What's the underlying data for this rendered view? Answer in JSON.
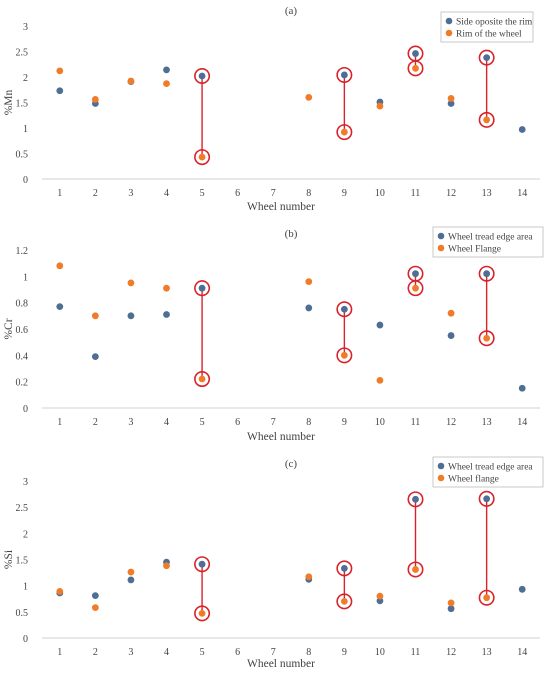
{
  "chart_data": [
    {
      "type": "scatter",
      "title": "(a)",
      "xlabel": "Wheel number",
      "ylabel": "%Mn",
      "xlim": [
        0.5,
        14.5
      ],
      "ylim": [
        0,
        3
      ],
      "yticks": [
        "0",
        "0.5",
        "1",
        "1.5",
        "2",
        "2.5",
        "3"
      ],
      "xticks": [
        "1",
        "2",
        "3",
        "4",
        "5",
        "6",
        "7",
        "8",
        "9",
        "10",
        "11",
        "12",
        "13",
        "14"
      ],
      "legend_position": "top-right",
      "grid": false,
      "series": [
        {
          "name": "Side oposite the rim",
          "color": "#4e6e94",
          "points": [
            [
              1,
              1.73
            ],
            [
              2,
              1.48
            ],
            [
              3,
              1.91
            ],
            [
              4,
              2.14
            ],
            [
              5,
              2.02
            ],
            [
              9,
              2.04
            ],
            [
              10,
              1.51
            ],
            [
              11,
              2.46
            ],
            [
              12,
              1.48
            ],
            [
              13,
              2.38
            ],
            [
              14,
              0.97
            ]
          ]
        },
        {
          "name": "Rim of the wheel",
          "color": "#f07c2a",
          "points": [
            [
              1,
              2.12
            ],
            [
              2,
              1.56
            ],
            [
              3,
              1.92
            ],
            [
              4,
              1.87
            ],
            [
              5,
              0.43
            ],
            [
              8,
              1.6
            ],
            [
              9,
              0.92
            ],
            [
              10,
              1.43
            ],
            [
              11,
              2.17
            ],
            [
              12,
              1.58
            ],
            [
              13,
              1.16
            ]
          ]
        }
      ],
      "highlights": [
        {
          "x": 5,
          "y_top": 2.02,
          "y_bottom": 0.43
        },
        {
          "x": 9,
          "y_top": 2.04,
          "y_bottom": 0.92
        },
        {
          "x": 11,
          "y_top": 2.46,
          "y_bottom": 2.17
        },
        {
          "x": 13,
          "y_top": 2.38,
          "y_bottom": 1.16
        }
      ]
    },
    {
      "type": "scatter",
      "title": "(b)",
      "xlabel": "Wheel number",
      "ylabel": "%Cr",
      "xlim": [
        0.5,
        14.5
      ],
      "ylim": [
        0,
        1.2
      ],
      "yticks": [
        "0",
        "0.2",
        "0.4",
        "0.6",
        "0.8",
        "1",
        "1.2"
      ],
      "xticks": [
        "1",
        "2",
        "3",
        "4",
        "5",
        "6",
        "7",
        "8",
        "9",
        "10",
        "11",
        "12",
        "13",
        "14"
      ],
      "legend_position": "top-right",
      "grid": false,
      "series": [
        {
          "name": "Wheel tread edge area",
          "color": "#4e6e94",
          "points": [
            [
              1,
              0.77
            ],
            [
              2,
              0.39
            ],
            [
              3,
              0.7
            ],
            [
              4,
              0.71
            ],
            [
              5,
              0.91
            ],
            [
              8,
              0.76
            ],
            [
              9,
              0.75
            ],
            [
              10,
              0.63
            ],
            [
              11,
              1.02
            ],
            [
              12,
              0.55
            ],
            [
              13,
              1.02
            ],
            [
              14,
              0.15
            ]
          ]
        },
        {
          "name": "Wheel Flange",
          "color": "#f07c2a",
          "points": [
            [
              1,
              1.08
            ],
            [
              2,
              0.7
            ],
            [
              3,
              0.95
            ],
            [
              4,
              0.91
            ],
            [
              5,
              0.22
            ],
            [
              8,
              0.96
            ],
            [
              9,
              0.4
            ],
            [
              10,
              0.21
            ],
            [
              11,
              0.91
            ],
            [
              12,
              0.72
            ],
            [
              13,
              0.53
            ]
          ]
        }
      ],
      "highlights": [
        {
          "x": 5,
          "y_top": 0.91,
          "y_bottom": 0.22
        },
        {
          "x": 9,
          "y_top": 0.75,
          "y_bottom": 0.4
        },
        {
          "x": 11,
          "y_top": 1.02,
          "y_bottom": 0.91
        },
        {
          "x": 13,
          "y_top": 1.02,
          "y_bottom": 0.53
        }
      ]
    },
    {
      "type": "scatter",
      "title": "(c)",
      "xlabel": "Wheel number",
      "ylabel": "%Si",
      "xlim": [
        0.5,
        14.5
      ],
      "ylim": [
        0,
        3
      ],
      "yticks": [
        "0",
        "0.5",
        "1",
        "1.5",
        "2",
        "2.5",
        "3"
      ],
      "xticks": [
        "1",
        "2",
        "3",
        "4",
        "5",
        "6",
        "7",
        "8",
        "9",
        "10",
        "11",
        "12",
        "13",
        "14"
      ],
      "legend_position": "top-right",
      "grid": false,
      "series": [
        {
          "name": "Wheel tread edge area",
          "color": "#4e6e94",
          "points": [
            [
              1,
              0.86
            ],
            [
              2,
              0.81
            ],
            [
              3,
              1.11
            ],
            [
              4,
              1.45
            ],
            [
              5,
              1.41
            ],
            [
              8,
              1.12
            ],
            [
              9,
              1.33
            ],
            [
              10,
              0.71
            ],
            [
              11,
              2.65
            ],
            [
              12,
              0.56
            ],
            [
              13,
              2.66
            ],
            [
              14,
              0.93
            ]
          ]
        },
        {
          "name": "Wheel flange",
          "color": "#f07c2a",
          "points": [
            [
              1,
              0.89
            ],
            [
              2,
              0.58
            ],
            [
              3,
              1.26
            ],
            [
              4,
              1.38
            ],
            [
              5,
              0.47
            ],
            [
              8,
              1.17
            ],
            [
              9,
              0.7
            ],
            [
              10,
              0.8
            ],
            [
              11,
              1.31
            ],
            [
              12,
              0.67
            ],
            [
              13,
              0.77
            ]
          ]
        }
      ],
      "highlights": [
        {
          "x": 5,
          "y_top": 1.41,
          "y_bottom": 0.47
        },
        {
          "x": 9,
          "y_top": 1.33,
          "y_bottom": 0.7
        },
        {
          "x": 11,
          "y_top": 2.65,
          "y_bottom": 1.31
        },
        {
          "x": 13,
          "y_top": 2.66,
          "y_bottom": 0.77
        }
      ]
    }
  ],
  "colors": {
    "axis": "#d0d0d0",
    "text": "#444444",
    "highlight": "#d8232a"
  }
}
